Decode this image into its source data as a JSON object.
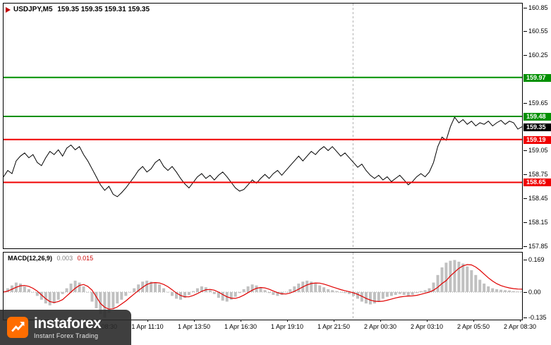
{
  "window": {
    "title_symbol": "USDJPY,M5",
    "title_quotes": "159.35 159.35 159.31 159.35"
  },
  "macd_header": {
    "name": "MACD(12,26,9)",
    "value_main": "0.003",
    "value_signal": "0.015"
  },
  "watermark": {
    "brand": "instaforex",
    "tagline": "Instant Forex Trading"
  },
  "colors": {
    "price_line": "#000000",
    "resistance": "#009000",
    "support": "#f00000",
    "current": "#000000",
    "macd_histogram": "#c0c0c0",
    "macd_signal": "#e00000",
    "day_separator": "#b0b0b0",
    "watermark_bg": "#2a2a2a",
    "logo_orange": "#ff6d00"
  },
  "chart_data": [
    {
      "type": "line",
      "title": "USDJPY M5 price chart",
      "symbol": "USDJPY",
      "timeframe": "M5",
      "ohlc": {
        "open": 159.35,
        "high": 159.35,
        "low": 159.31,
        "close": 159.35
      },
      "ylim": [
        157.82,
        160.9
      ],
      "y_ticks": [
        160.85,
        160.55,
        160.25,
        159.95,
        159.65,
        159.35,
        159.05,
        158.75,
        158.45,
        158.15,
        157.85
      ],
      "levels": [
        {
          "price": 159.97,
          "role": "resistance",
          "color": "#009000"
        },
        {
          "price": 159.48,
          "role": "resistance",
          "color": "#009000"
        },
        {
          "price": 159.35,
          "role": "current",
          "color": "#000000"
        },
        {
          "price": 159.19,
          "role": "support",
          "color": "#f00000"
        },
        {
          "price": 158.65,
          "role": "support",
          "color": "#f00000"
        }
      ],
      "x_labels": [
        "1 Apr 08:30",
        "1 Apr 11:10",
        "1 Apr 13:50",
        "1 Apr 16:30",
        "1 Apr 19:10",
        "1 Apr 21:50",
        "2 Apr 00:30",
        "2 Apr 03:10",
        "2 Apr 05:50",
        "2 Apr 08:30"
      ],
      "day_separator_frac": 0.674,
      "values": [
        158.72,
        158.8,
        158.76,
        158.92,
        158.98,
        159.02,
        158.96,
        159.0,
        158.9,
        158.86,
        158.96,
        159.04,
        159.0,
        159.06,
        158.98,
        159.08,
        159.12,
        159.06,
        159.1,
        159.0,
        158.92,
        158.82,
        158.72,
        158.62,
        158.55,
        158.6,
        158.5,
        158.47,
        158.52,
        158.58,
        158.65,
        158.72,
        158.8,
        158.85,
        158.78,
        158.82,
        158.9,
        158.94,
        158.85,
        158.8,
        158.85,
        158.78,
        158.7,
        158.63,
        158.58,
        158.65,
        158.72,
        158.76,
        158.7,
        158.74,
        158.68,
        158.74,
        158.78,
        158.72,
        158.65,
        158.58,
        158.54,
        158.56,
        158.62,
        158.68,
        158.64,
        158.7,
        158.75,
        158.7,
        158.76,
        158.8,
        158.74,
        158.8,
        158.86,
        158.92,
        158.98,
        158.92,
        158.98,
        159.04,
        159.0,
        159.06,
        159.1,
        159.05,
        159.1,
        159.04,
        158.98,
        159.02,
        158.96,
        158.9,
        158.84,
        158.88,
        158.8,
        158.74,
        158.7,
        158.74,
        158.68,
        158.72,
        158.66,
        158.7,
        158.74,
        158.68,
        158.62,
        158.66,
        158.72,
        158.76,
        158.72,
        158.78,
        158.9,
        159.1,
        159.22,
        159.18,
        159.35,
        159.47,
        159.4,
        159.44,
        159.38,
        159.42,
        159.36,
        159.4,
        159.38,
        159.42,
        159.36,
        159.4,
        159.43,
        159.38,
        159.42,
        159.4,
        159.32,
        159.35
      ]
    },
    {
      "type": "bar",
      "title": "MACD(12,26,9)",
      "params": [
        12,
        26,
        9
      ],
      "ylim": [
        -0.145,
        0.208
      ],
      "y_ticks": [
        {
          "v": 0.169,
          "label": "0.169"
        },
        {
          "v": 0,
          "label": "0.00"
        },
        {
          "v": -0.135,
          "label": "-0.135"
        }
      ],
      "series": [
        {
          "name": "MACD histogram",
          "style": "bars",
          "color": "#c0c0c0",
          "values": [
            0.005,
            0.02,
            0.035,
            0.05,
            0.045,
            0.03,
            0.015,
            0.0,
            -0.02,
            -0.04,
            -0.06,
            -0.07,
            -0.06,
            -0.04,
            -0.01,
            0.02,
            0.045,
            0.06,
            0.05,
            0.03,
            0.0,
            -0.05,
            -0.085,
            -0.115,
            -0.135,
            -0.11,
            -0.085,
            -0.06,
            -0.04,
            -0.02,
            0.0,
            0.02,
            0.04,
            0.055,
            0.06,
            0.055,
            0.05,
            0.04,
            0.02,
            0.0,
            -0.02,
            -0.035,
            -0.04,
            -0.03,
            -0.015,
            0.005,
            0.02,
            0.03,
            0.025,
            0.01,
            -0.01,
            -0.03,
            -0.045,
            -0.05,
            -0.04,
            -0.025,
            -0.005,
            0.015,
            0.03,
            0.04,
            0.035,
            0.025,
            0.01,
            -0.005,
            -0.015,
            -0.02,
            -0.015,
            0.0,
            0.015,
            0.03,
            0.045,
            0.055,
            0.06,
            0.055,
            0.045,
            0.035,
            0.025,
            0.015,
            0.01,
            0.005,
            0.0,
            -0.005,
            -0.01,
            -0.02,
            -0.035,
            -0.05,
            -0.06,
            -0.065,
            -0.06,
            -0.05,
            -0.035,
            -0.025,
            -0.02,
            -0.015,
            -0.01,
            -0.015,
            -0.02,
            -0.015,
            -0.005,
            0.005,
            0.01,
            0.02,
            0.05,
            0.09,
            0.13,
            0.155,
            0.165,
            0.169,
            0.16,
            0.15,
            0.135,
            0.115,
            0.09,
            0.065,
            0.045,
            0.03,
            0.02,
            0.015,
            0.012,
            0.01,
            0.008,
            0.005,
            0.003,
            0.003
          ]
        },
        {
          "name": "Signal",
          "style": "line",
          "color": "#e00000",
          "values": [
            0.0,
            0.005,
            0.015,
            0.025,
            0.033,
            0.035,
            0.03,
            0.02,
            0.005,
            -0.015,
            -0.035,
            -0.05,
            -0.055,
            -0.05,
            -0.04,
            -0.02,
            0.0,
            0.02,
            0.035,
            0.04,
            0.03,
            0.01,
            -0.025,
            -0.06,
            -0.08,
            -0.09,
            -0.088,
            -0.078,
            -0.063,
            -0.047,
            -0.028,
            -0.01,
            0.008,
            0.025,
            0.04,
            0.048,
            0.05,
            0.048,
            0.04,
            0.028,
            0.012,
            -0.005,
            -0.018,
            -0.025,
            -0.025,
            -0.018,
            -0.008,
            0.004,
            0.012,
            0.014,
            0.01,
            0.0,
            -0.013,
            -0.025,
            -0.032,
            -0.033,
            -0.027,
            -0.016,
            -0.003,
            0.01,
            0.02,
            0.024,
            0.022,
            0.015,
            0.006,
            -0.003,
            -0.009,
            -0.01,
            -0.005,
            0.004,
            0.015,
            0.027,
            0.038,
            0.045,
            0.048,
            0.047,
            0.042,
            0.035,
            0.027,
            0.02,
            0.013,
            0.007,
            0.002,
            -0.004,
            -0.012,
            -0.022,
            -0.033,
            -0.042,
            -0.048,
            -0.05,
            -0.048,
            -0.043,
            -0.037,
            -0.031,
            -0.026,
            -0.023,
            -0.021,
            -0.02,
            -0.017,
            -0.012,
            -0.006,
            0.0,
            0.01,
            0.025,
            0.045,
            0.06,
            0.085,
            0.105,
            0.125,
            0.138,
            0.145,
            0.143,
            0.132,
            0.115,
            0.095,
            0.075,
            0.058,
            0.044,
            0.034,
            0.027,
            0.022,
            0.018,
            0.016,
            0.015
          ]
        }
      ]
    }
  ]
}
